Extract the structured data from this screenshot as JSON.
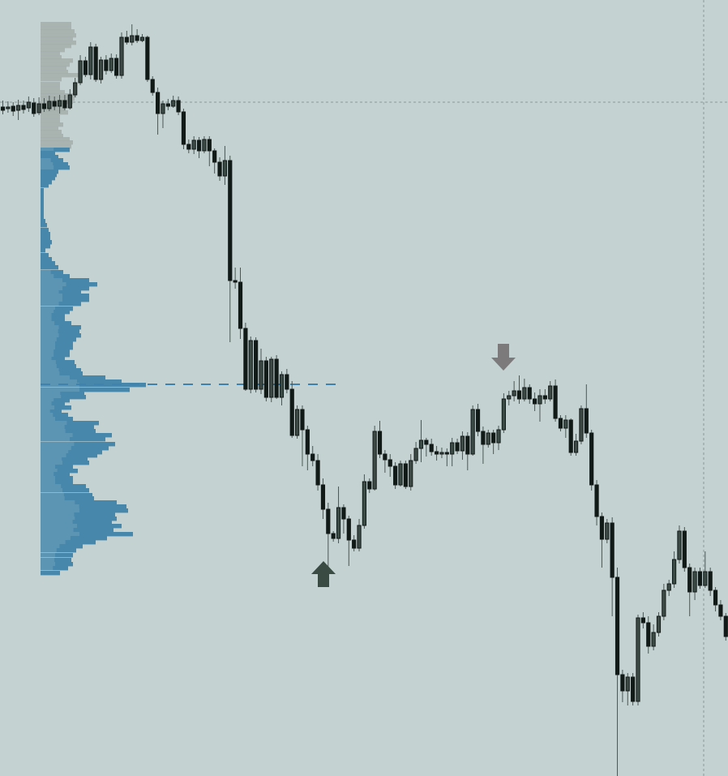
{
  "colors": {
    "background": "#c4d3d2",
    "candle_body": "#121a18",
    "candle_bull_fill": "#3d4b47",
    "wick": "#4a5654",
    "profile_grey": "#a4aeac",
    "profile_blue": "#4787ab",
    "profile_blue_light": "#6e9fb9",
    "poc_line": "#3f82ad",
    "crosshair": "#8a9a98",
    "arrow_up": "#3a4b43",
    "arrow_down": "#7c7a7a"
  },
  "chart_data": {
    "type": "candlestick",
    "title": "",
    "xlabel": "",
    "ylabel": "",
    "grid": false,
    "ylim": [
      0,
      957
    ],
    "candles": [
      [
        1,
        132,
        136,
        124,
        141
      ],
      [
        2,
        134,
        132,
        125,
        139
      ],
      [
        3,
        131,
        137,
        126,
        143
      ],
      [
        4,
        136,
        130,
        123,
        148
      ],
      [
        5,
        130,
        135,
        124,
        140
      ],
      [
        6,
        133,
        126,
        119,
        138
      ],
      [
        7,
        127,
        140,
        121,
        144
      ],
      [
        8,
        139,
        128,
        120,
        142
      ],
      [
        9,
        128,
        134,
        121,
        138
      ],
      [
        10,
        134,
        125,
        118,
        137
      ],
      [
        11,
        125,
        131,
        119,
        136
      ],
      [
        12,
        131,
        124,
        117,
        140
      ],
      [
        13,
        124,
        133,
        117,
        136
      ],
      [
        14,
        133,
        117,
        110,
        135
      ],
      [
        15,
        117,
        102,
        96,
        120
      ],
      [
        16,
        102,
        75,
        68,
        105
      ],
      [
        17,
        75,
        92,
        70,
        95
      ],
      [
        18,
        92,
        58,
        52,
        98
      ],
      [
        19,
        58,
        98,
        54,
        101
      ],
      [
        20,
        98,
        74,
        70,
        103
      ],
      [
        21,
        74,
        87,
        68,
        92
      ],
      [
        22,
        87,
        72,
        66,
        90
      ],
      [
        23,
        72,
        93,
        67,
        97
      ],
      [
        24,
        93,
        46,
        40,
        97
      ],
      [
        25,
        46,
        52,
        38,
        55
      ],
      [
        26,
        52,
        44,
        30,
        56
      ],
      [
        27,
        44,
        50,
        36,
        53
      ],
      [
        28,
        50,
        46,
        42,
        52
      ],
      [
        29,
        46,
        98,
        44,
        101
      ],
      [
        30,
        98,
        114,
        94,
        118
      ],
      [
        31,
        114,
        140,
        108,
        166
      ],
      [
        32,
        140,
        128,
        124,
        158
      ],
      [
        33,
        128,
        131,
        122,
        136
      ],
      [
        34,
        131,
        124,
        118,
        133
      ],
      [
        35,
        124,
        138,
        119,
        142
      ],
      [
        36,
        138,
        178,
        134,
        184
      ],
      [
        37,
        178,
        184,
        172,
        189
      ],
      [
        38,
        184,
        173,
        168,
        190
      ],
      [
        39,
        173,
        186,
        169,
        195
      ],
      [
        40,
        186,
        172,
        168,
        189
      ],
      [
        41,
        172,
        186,
        168,
        205
      ],
      [
        42,
        186,
        200,
        183,
        214
      ],
      [
        43,
        200,
        217,
        194,
        223
      ],
      [
        44,
        217,
        198,
        180,
        228
      ],
      [
        45,
        198,
        346,
        192,
        422
      ],
      [
        46,
        346,
        348,
        330,
        356
      ],
      [
        47,
        348,
        405,
        330,
        418
      ],
      [
        48,
        405,
        480,
        398,
        482
      ],
      [
        49,
        480,
        420,
        415,
        485
      ],
      [
        50,
        420,
        480,
        416,
        484
      ],
      [
        51,
        480,
        445,
        430,
        486
      ],
      [
        52,
        445,
        490,
        440,
        495
      ],
      [
        53,
        490,
        443,
        440,
        496
      ],
      [
        54,
        443,
        490,
        438,
        492
      ],
      [
        55,
        490,
        462,
        458,
        500
      ],
      [
        56,
        462,
        480,
        455,
        485
      ],
      [
        57,
        480,
        537,
        470,
        540
      ],
      [
        58,
        537,
        505,
        500,
        541
      ],
      [
        59,
        505,
        530,
        500,
        575
      ],
      [
        60,
        530,
        560,
        525,
        580
      ],
      [
        61,
        560,
        568,
        550,
        575
      ],
      [
        62,
        568,
        598,
        560,
        605
      ],
      [
        63,
        598,
        628,
        590,
        640
      ],
      [
        64,
        628,
        658,
        620,
        708
      ],
      [
        65,
        658,
        664,
        655,
        668
      ],
      [
        66,
        664,
        626,
        600,
        670
      ],
      [
        67,
        626,
        640,
        622,
        658
      ],
      [
        68,
        640,
        666,
        636,
        698
      ],
      [
        69,
        666,
        676,
        660,
        680
      ],
      [
        70,
        676,
        648,
        640,
        680
      ],
      [
        71,
        648,
        594,
        585,
        652
      ],
      [
        72,
        594,
        603,
        590,
        608
      ],
      [
        73,
        603,
        532,
        525,
        605
      ],
      [
        74,
        532,
        560,
        519,
        565
      ],
      [
        75,
        560,
        567,
        555,
        583
      ],
      [
        76,
        567,
        575,
        560,
        588
      ],
      [
        77,
        575,
        598,
        570,
        603
      ],
      [
        78,
        598,
        572,
        568,
        600
      ],
      [
        79,
        572,
        600,
        568,
        603
      ],
      [
        80,
        600,
        568,
        560,
        605
      ],
      [
        81,
        568,
        553,
        545,
        572
      ],
      [
        82,
        553,
        543,
        518,
        570
      ],
      [
        83,
        543,
        548,
        540,
        563
      ],
      [
        84,
        548,
        557,
        541,
        562
      ],
      [
        85,
        557,
        560,
        550,
        568
      ],
      [
        86,
        560,
        558,
        552,
        565
      ],
      [
        87,
        558,
        560,
        553,
        575
      ],
      [
        88,
        560,
        546,
        540,
        575
      ],
      [
        89,
        546,
        556,
        541,
        560
      ],
      [
        90,
        556,
        538,
        532,
        567
      ],
      [
        91,
        538,
        560,
        533,
        580
      ],
      [
        92,
        560,
        505,
        500,
        562
      ],
      [
        93,
        505,
        532,
        498,
        538
      ],
      [
        94,
        532,
        548,
        526,
        572
      ],
      [
        95,
        548,
        534,
        530,
        552
      ],
      [
        96,
        534,
        546,
        530,
        560
      ],
      [
        97,
        546,
        530,
        525,
        555
      ],
      [
        98,
        530,
        492,
        485,
        534
      ],
      [
        99,
        492,
        488,
        482,
        500
      ],
      [
        100,
        488,
        482,
        470,
        495
      ],
      [
        101,
        482,
        492,
        463,
        498
      ],
      [
        102,
        492,
        478,
        467,
        495
      ],
      [
        103,
        478,
        492,
        474,
        498
      ],
      [
        104,
        492,
        498,
        484,
        507
      ],
      [
        105,
        498,
        488,
        480,
        520
      ],
      [
        106,
        488,
        492,
        480,
        498
      ],
      [
        107,
        492,
        476,
        470,
        495
      ],
      [
        108,
        476,
        516,
        468,
        520
      ],
      [
        109,
        516,
        528,
        512,
        532
      ],
      [
        110,
        528,
        518,
        512,
        540
      ],
      [
        111,
        518,
        558,
        516,
        562
      ],
      [
        112,
        558,
        544,
        535,
        562
      ],
      [
        113,
        544,
        504,
        500,
        548
      ],
      [
        114,
        504,
        534,
        474,
        540
      ],
      [
        115,
        534,
        598,
        530,
        605
      ],
      [
        116,
        598,
        637,
        592,
        648
      ],
      [
        117,
        637,
        665,
        632,
        700
      ],
      [
        118,
        665,
        645,
        640,
        670
      ],
      [
        119,
        645,
        712,
        638,
        760
      ],
      [
        120,
        712,
        832,
        700,
        957
      ],
      [
        121,
        832,
        852,
        826,
        866
      ],
      [
        122,
        852,
        835,
        830,
        870
      ],
      [
        123,
        835,
        865,
        830,
        870
      ],
      [
        124,
        865,
        762,
        758,
        870
      ],
      [
        125,
        762,
        768,
        755,
        775
      ],
      [
        126,
        768,
        797,
        760,
        806
      ],
      [
        127,
        797,
        780,
        770,
        802
      ],
      [
        128,
        780,
        760,
        755,
        785
      ],
      [
        129,
        760,
        728,
        720,
        765
      ],
      [
        130,
        728,
        720,
        715,
        735
      ],
      [
        131,
        720,
        690,
        680,
        725
      ],
      [
        132,
        690,
        655,
        648,
        695
      ],
      [
        133,
        655,
        700,
        650,
        705
      ],
      [
        134,
        700,
        730,
        695,
        760
      ],
      [
        135,
        730,
        705,
        700,
        740
      ],
      [
        136,
        705,
        722,
        700,
        726
      ],
      [
        137,
        722,
        705,
        680,
        725
      ],
      [
        138,
        705,
        728,
        700,
        735
      ],
      [
        139,
        728,
        746,
        724,
        754
      ],
      [
        140,
        746,
        760,
        740,
        765
      ],
      [
        141,
        760,
        785,
        756,
        790
      ]
    ],
    "volume_profile": [
      [
        29,
        14,
        38
      ],
      [
        34,
        14,
        38
      ],
      [
        38,
        18,
        42
      ],
      [
        43,
        22,
        44
      ],
      [
        47,
        20,
        40
      ],
      [
        52,
        22,
        44
      ],
      [
        56,
        18,
        38
      ],
      [
        61,
        16,
        30
      ],
      [
        65,
        20,
        24
      ],
      [
        70,
        20,
        26
      ],
      [
        74,
        22,
        40
      ],
      [
        79,
        18,
        36
      ],
      [
        83,
        16,
        32
      ],
      [
        88,
        18,
        34
      ],
      [
        92,
        20,
        52
      ],
      [
        97,
        20,
        26
      ],
      [
        103,
        18,
        24
      ],
      [
        108,
        20,
        24
      ],
      [
        113,
        18,
        30
      ],
      [
        117,
        24,
        44
      ],
      [
        121,
        26,
        42
      ],
      [
        125,
        22,
        40
      ],
      [
        129,
        20,
        32
      ],
      [
        134,
        16,
        30
      ],
      [
        138,
        22,
        34
      ],
      [
        143,
        20,
        24
      ],
      [
        148,
        16,
        24
      ],
      [
        153,
        14,
        28
      ],
      [
        158,
        20,
        22
      ],
      [
        162,
        14,
        26
      ],
      [
        167,
        18,
        28
      ],
      [
        171,
        20,
        36
      ],
      [
        175,
        18,
        40
      ],
      [
        180,
        18,
        38
      ],
      [
        184,
        20,
        36
      ],
      [
        188,
        24,
        18
      ],
      [
        193,
        22,
        22
      ],
      [
        197,
        24,
        28
      ],
      [
        202,
        22,
        34
      ],
      [
        206,
        24,
        36
      ],
      [
        211,
        22,
        22
      ],
      [
        215,
        20,
        20
      ],
      [
        219,
        18,
        18
      ],
      [
        224,
        14,
        14
      ],
      [
        228,
        10,
        10
      ],
      [
        234,
        4,
        4
      ],
      [
        238,
        4,
        4
      ],
      [
        242,
        4,
        4
      ],
      [
        247,
        4,
        4
      ],
      [
        251,
        4,
        4
      ],
      [
        255,
        4,
        4
      ],
      [
        260,
        4,
        4
      ],
      [
        264,
        4,
        4
      ],
      [
        268,
        4,
        4
      ],
      [
        272,
        6,
        6
      ],
      [
        277,
        8,
        8
      ],
      [
        283,
        10,
        10
      ],
      [
        288,
        12,
        12
      ],
      [
        293,
        12,
        12
      ],
      [
        298,
        14,
        14
      ],
      [
        303,
        12,
        12
      ],
      [
        308,
        6,
        6
      ],
      [
        314,
        10,
        10
      ],
      [
        319,
        14,
        14
      ],
      [
        324,
        18,
        18
      ],
      [
        329,
        22,
        22
      ],
      [
        335,
        28,
        28
      ],
      [
        340,
        36,
        36
      ],
      [
        345,
        60,
        60
      ],
      [
        350,
        70,
        70
      ],
      [
        355,
        60,
        60
      ],
      [
        360,
        50,
        50
      ],
      [
        364,
        60,
        60
      ],
      [
        369,
        60,
        60
      ],
      [
        374,
        50,
        50
      ],
      [
        380,
        40,
        40
      ],
      [
        384,
        36,
        36
      ],
      [
        388,
        30,
        30
      ],
      [
        393,
        30,
        30
      ],
      [
        398,
        38,
        38
      ],
      [
        403,
        50,
        50
      ],
      [
        408,
        48,
        48
      ],
      [
        413,
        50,
        50
      ],
      [
        418,
        44,
        44
      ],
      [
        423,
        40,
        40
      ],
      [
        428,
        40,
        40
      ],
      [
        433,
        36,
        36
      ],
      [
        437,
        36,
        36
      ],
      [
        442,
        30,
        30
      ],
      [
        446,
        42,
        42
      ],
      [
        451,
        44,
        44
      ],
      [
        456,
        50,
        50
      ],
      [
        460,
        52,
        52
      ],
      [
        465,
        80,
        80
      ],
      [
        470,
        100,
        100
      ],
      [
        474,
        130,
        130
      ],
      [
        480,
        110,
        110
      ],
      [
        485,
        54,
        54
      ],
      [
        489,
        56,
        56
      ],
      [
        493,
        36,
        36
      ],
      [
        497,
        30,
        30
      ],
      [
        502,
        38,
        38
      ],
      [
        507,
        26,
        26
      ],
      [
        511,
        34,
        34
      ],
      [
        516,
        40,
        40
      ],
      [
        521,
        72,
        72
      ],
      [
        526,
        66,
        66
      ],
      [
        531,
        68,
        68
      ],
      [
        536,
        88,
        88
      ],
      [
        541,
        80,
        80
      ],
      [
        547,
        92,
        92
      ],
      [
        552,
        84,
        84
      ],
      [
        557,
        76,
        76
      ],
      [
        561,
        70,
        70
      ],
      [
        566,
        58,
        58
      ],
      [
        570,
        60,
        60
      ],
      [
        575,
        40,
        40
      ],
      [
        580,
        46,
        46
      ],
      [
        584,
        36,
        36
      ],
      [
        589,
        40,
        40
      ],
      [
        594,
        40,
        40
      ],
      [
        599,
        56,
        56
      ],
      [
        604,
        60,
        60
      ],
      [
        610,
        64,
        64
      ],
      [
        614,
        66,
        66
      ],
      [
        619,
        94,
        94
      ],
      [
        624,
        106,
        106
      ],
      [
        629,
        108,
        108
      ],
      [
        634,
        92,
        92
      ],
      [
        639,
        94,
        94
      ],
      [
        643,
        88,
        88
      ],
      [
        648,
        100,
        100
      ],
      [
        653,
        90,
        90
      ],
      [
        658,
        114,
        114
      ],
      [
        663,
        82,
        82
      ],
      [
        668,
        68,
        68
      ],
      [
        673,
        52,
        52
      ],
      [
        678,
        44,
        44
      ],
      [
        684,
        40,
        40
      ],
      [
        690,
        38,
        38
      ],
      [
        695,
        40,
        40
      ],
      [
        700,
        34,
        34
      ],
      [
        706,
        24,
        24
      ]
    ],
    "poc": {
      "y": 474,
      "x_end": 420
    },
    "crosshair": {
      "y": 126,
      "x": 868
    },
    "annotations": [
      {
        "name": "buy-arrow",
        "direction": "up",
        "x": 399,
        "tip_y": 692
      },
      {
        "name": "sell-arrow",
        "direction": "down",
        "x": 621,
        "tip_y": 457
      }
    ]
  }
}
